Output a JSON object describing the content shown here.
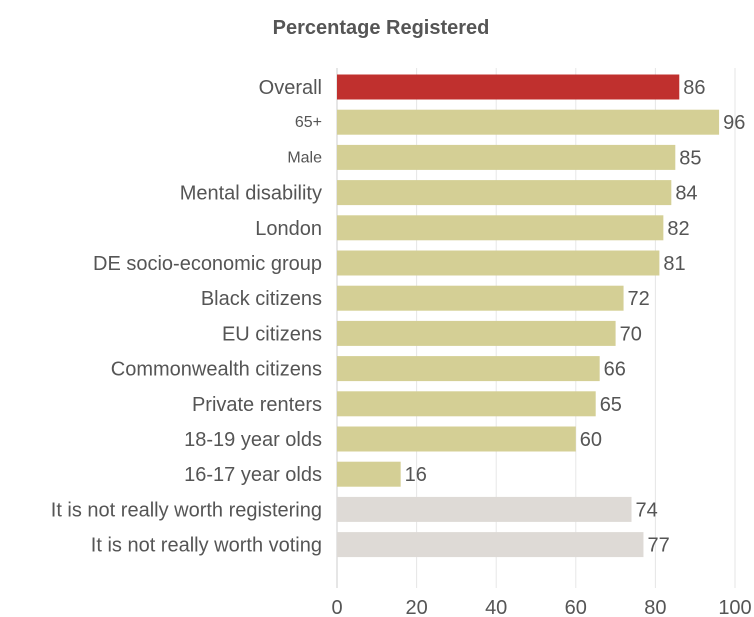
{
  "chart_data": {
    "type": "bar",
    "orientation": "horizontal",
    "title": "Percentage Registered",
    "categories": [
      "Overall",
      "65+",
      "Male",
      "Mental disability",
      "London",
      "DE socio-economic group",
      "Black citizens",
      "EU citizens",
      "Commonwealth citizens",
      "Private renters",
      "18-19 year olds",
      "16-17 year olds",
      "It is not really worth registering",
      "It is not really worth voting"
    ],
    "values": [
      86,
      96,
      85,
      84,
      82,
      81,
      72,
      70,
      66,
      65,
      60,
      16,
      74,
      77
    ],
    "bar_colors": [
      "#c0302e",
      "#d4cf95",
      "#d4cf95",
      "#d4cf95",
      "#d4cf95",
      "#d4cf95",
      "#d4cf95",
      "#d4cf95",
      "#d4cf95",
      "#d4cf95",
      "#d4cf95",
      "#d4cf95",
      "#dedad6",
      "#dedad6"
    ],
    "xlim": [
      0,
      100
    ],
    "xticks": [
      0,
      20,
      40,
      60,
      80,
      100
    ],
    "xlabel": "",
    "ylabel": "",
    "grid": "vertical"
  }
}
